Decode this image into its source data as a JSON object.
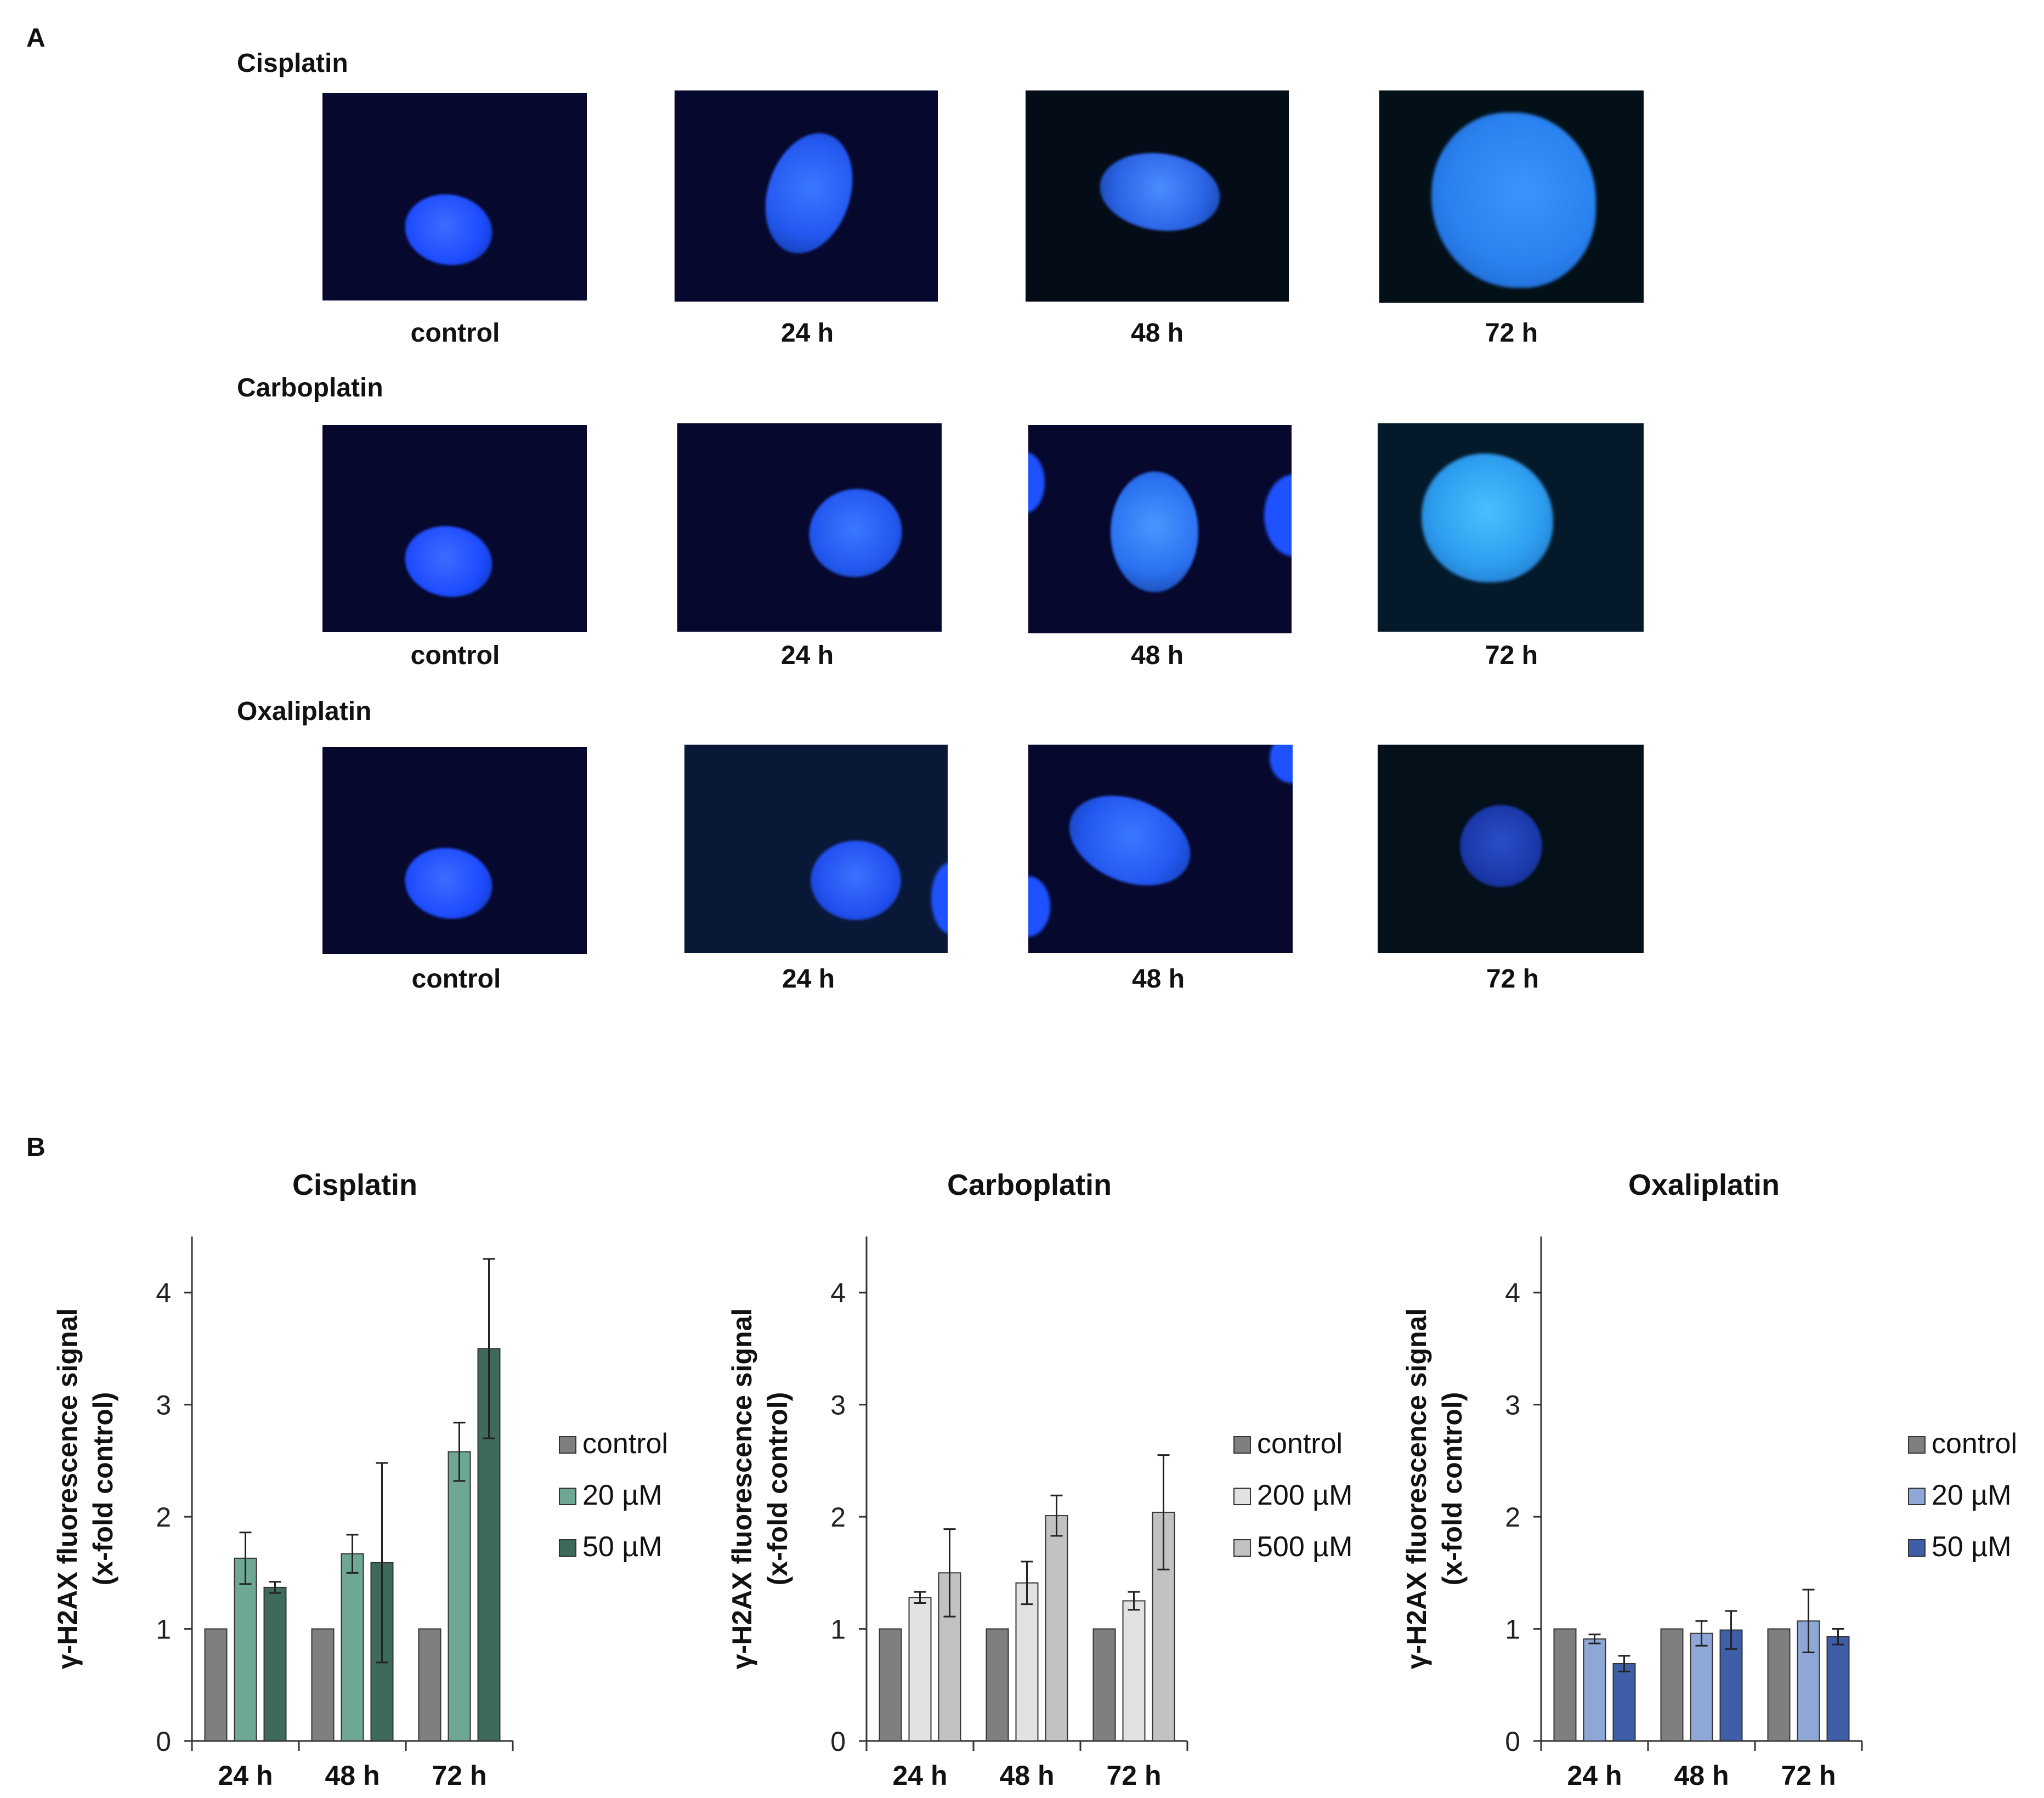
{
  "panel_a": {
    "label": "A",
    "rows": [
      {
        "title": "Cisplatin",
        "captions": [
          "control",
          "24 h",
          "48 h",
          "72 h"
        ]
      },
      {
        "title": "Carboplatin",
        "captions": [
          "control",
          "24 h",
          "48 h",
          "72 h"
        ]
      },
      {
        "title": "Oxaliplatin",
        "captions": [
          "control",
          "24 h",
          "48 h",
          "72 h"
        ]
      }
    ]
  },
  "panel_b": {
    "label": "B"
  },
  "colors": {
    "control": "#7f7f7f",
    "cis_20": "#6fa892",
    "cis_50": "#3e6a5a",
    "carbo_200": "#e2e2e2",
    "carbo_500": "#c2c2c2",
    "oxa_20": "#8ea7d6",
    "oxa_50": "#3f5ea8",
    "micro_bg": "#06082e",
    "nucleus": "#1f52ff"
  },
  "chart_data": [
    {
      "type": "bar",
      "title": "Cisplatin",
      "ylabel": [
        "γ-H2AX fluorescence signal",
        "(x-fold control)"
      ],
      "categories": [
        "24 h",
        "48 h",
        "72 h"
      ],
      "ylim": [
        0,
        4.5
      ],
      "yticks": [
        0,
        1,
        2,
        3,
        4
      ],
      "legend_position": "right",
      "series": [
        {
          "name": "control",
          "values": [
            1,
            1,
            1
          ],
          "errors": [
            0,
            0,
            0
          ]
        },
        {
          "name": "20 µM",
          "values": [
            1.63,
            1.67,
            2.58
          ],
          "errors": [
            0.23,
            0.17,
            0.26
          ]
        },
        {
          "name": "50 µM",
          "values": [
            1.37,
            1.59,
            3.5
          ],
          "errors": [
            0.05,
            0.89,
            0.8
          ]
        }
      ]
    },
    {
      "type": "bar",
      "title": "Carboplatin",
      "ylabel": [
        "γ-H2AX fluorescence signal",
        "(x-fold control)"
      ],
      "categories": [
        "24 h",
        "48 h",
        "72 h"
      ],
      "ylim": [
        0,
        4.5
      ],
      "yticks": [
        0,
        1,
        2,
        3,
        4
      ],
      "legend_position": "right",
      "series": [
        {
          "name": "control",
          "values": [
            1,
            1,
            1
          ],
          "errors": [
            0,
            0,
            0
          ]
        },
        {
          "name": "200 µM",
          "values": [
            1.28,
            1.41,
            1.25
          ],
          "errors": [
            0.05,
            0.19,
            0.08
          ]
        },
        {
          "name": "500 µM",
          "values": [
            1.5,
            2.01,
            2.04
          ],
          "errors": [
            0.39,
            0.18,
            0.51
          ]
        }
      ]
    },
    {
      "type": "bar",
      "title": "Oxaliplatin",
      "ylabel": [
        "γ-H2AX fluorescence signal",
        "(x-fold control)"
      ],
      "categories": [
        "24 h",
        "48 h",
        "72 h"
      ],
      "ylim": [
        0,
        4.5
      ],
      "yticks": [
        0,
        1,
        2,
        3,
        4
      ],
      "legend_position": "right",
      "series": [
        {
          "name": "control",
          "values": [
            1,
            1,
            1
          ],
          "errors": [
            0,
            0,
            0
          ]
        },
        {
          "name": "20 µM",
          "values": [
            0.91,
            0.96,
            1.07
          ],
          "errors": [
            0.04,
            0.11,
            0.28
          ]
        },
        {
          "name": "50 µM",
          "values": [
            0.69,
            0.99,
            0.93
          ],
          "errors": [
            0.07,
            0.17,
            0.07
          ]
        }
      ]
    }
  ]
}
